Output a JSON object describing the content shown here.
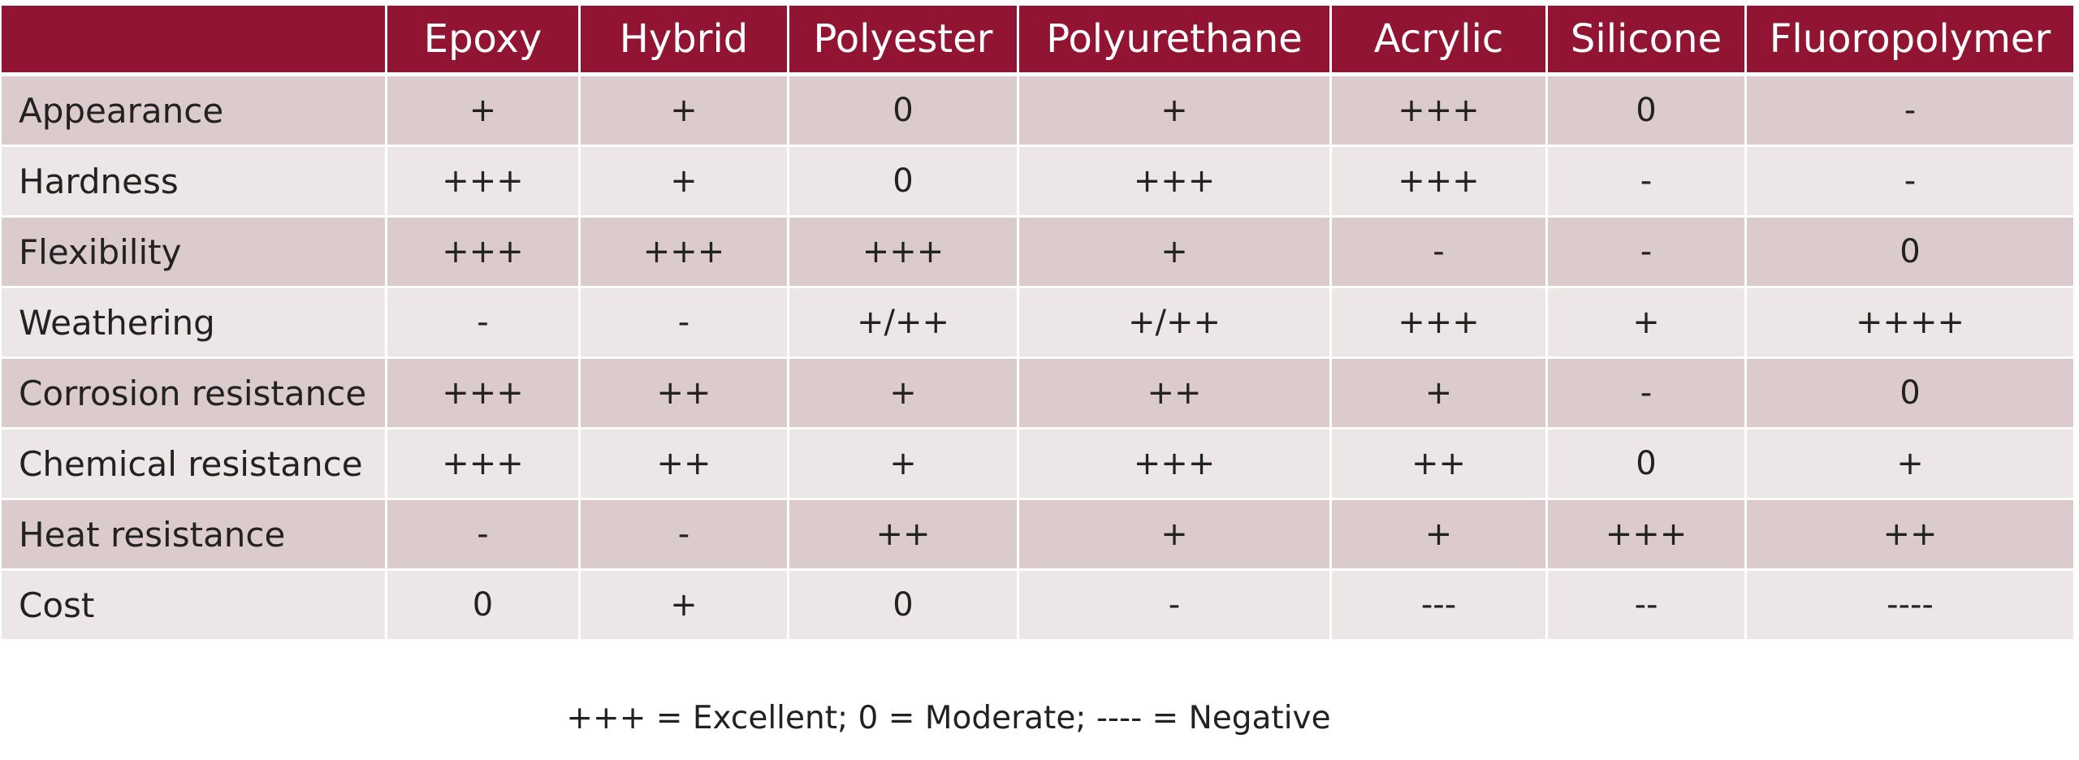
{
  "table": {
    "corner_label": "",
    "columns": [
      "Epoxy",
      "Hybrid",
      "Polyester",
      "Polyurethane",
      "Acrylic",
      "Silicone",
      "Fluoropolymer"
    ],
    "rows": [
      {
        "label": "Appearance",
        "values": [
          "+",
          "+",
          "0",
          "+",
          "+++",
          "0",
          "-"
        ]
      },
      {
        "label": "Hardness",
        "values": [
          "+++",
          "+",
          "0",
          "+++",
          "+++",
          "-",
          "-"
        ]
      },
      {
        "label": "Flexibility",
        "values": [
          "+++",
          "+++",
          "+++",
          "+",
          "-",
          "-",
          "0"
        ]
      },
      {
        "label": "Weathering",
        "values": [
          "-",
          "-",
          "+/++",
          "+/++",
          "+++",
          "+",
          "++++"
        ]
      },
      {
        "label": "Corrosion resistance",
        "values": [
          "+++",
          "++",
          "+",
          "++",
          "+",
          "-",
          "0"
        ]
      },
      {
        "label": "Chemical resistance",
        "values": [
          "+++",
          "++",
          "+",
          "+++",
          "++",
          "0",
          "+"
        ]
      },
      {
        "label": "Heat resistance",
        "values": [
          "-",
          "-",
          "++",
          "+",
          "+",
          "+++",
          "++"
        ]
      },
      {
        "label": "Cost",
        "values": [
          "0",
          "+",
          "0",
          "-",
          "---",
          "--",
          "----"
        ]
      }
    ]
  },
  "legend": "+++ = Excellent; 0 = Moderate; ---- = Negative",
  "colors": {
    "header_bg": "#921433",
    "row_odd_bg": "#dccbcd",
    "row_even_bg": "#ece6e6"
  }
}
